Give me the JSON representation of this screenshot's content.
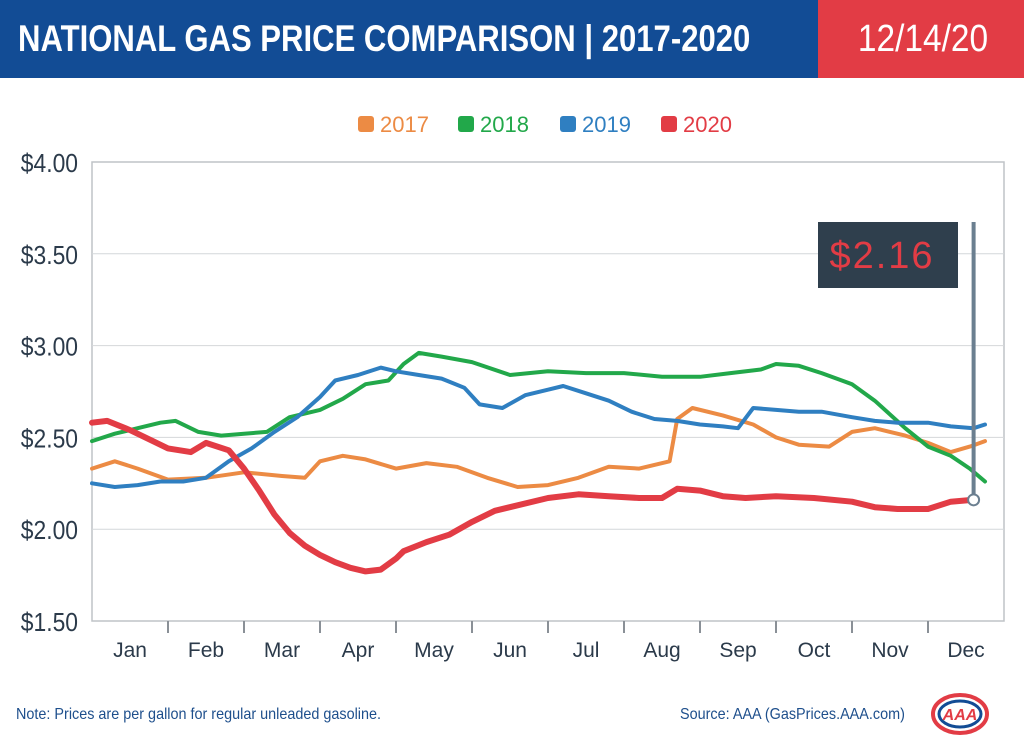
{
  "header": {
    "title": "NATIONAL GAS PRICE COMPARISON | 2017-2020",
    "date": "12/14/20"
  },
  "chart_data": {
    "type": "line",
    "ylim": [
      1.5,
      4.0
    ],
    "yticks": [
      "$4.00",
      "$3.50",
      "$3.00",
      "$2.50",
      "$2.00",
      "$1.50"
    ],
    "ytick_values": [
      4.0,
      3.5,
      3.0,
      2.5,
      2.0,
      1.5
    ],
    "months": [
      "Jan",
      "Feb",
      "Mar",
      "Apr",
      "May",
      "Jun",
      "Jul",
      "Aug",
      "Sep",
      "Oct",
      "Nov",
      "Dec"
    ],
    "grid": true,
    "legend_position": "top-center",
    "callout": {
      "label": "$2.16",
      "series": "2020",
      "x": 11.6,
      "y": 2.16
    },
    "series": [
      {
        "name": "2017",
        "color": "#ec8b44",
        "x": [
          0,
          0.3,
          0.6,
          1,
          1.5,
          2,
          2.5,
          2.8,
          3,
          3.3,
          3.6,
          4,
          4.4,
          4.8,
          5.2,
          5.6,
          6,
          6.4,
          6.8,
          7.2,
          7.6,
          7.7,
          7.9,
          8.3,
          8.7,
          9,
          9.3,
          9.7,
          10,
          10.3,
          10.7,
          11,
          11.3,
          11.55,
          11.75
        ],
        "y": [
          2.33,
          2.37,
          2.33,
          2.27,
          2.28,
          2.31,
          2.29,
          2.28,
          2.37,
          2.4,
          2.38,
          2.33,
          2.36,
          2.34,
          2.28,
          2.23,
          2.24,
          2.28,
          2.34,
          2.33,
          2.37,
          2.6,
          2.66,
          2.62,
          2.57,
          2.5,
          2.46,
          2.45,
          2.53,
          2.55,
          2.51,
          2.47,
          2.42,
          2.45,
          2.48
        ]
      },
      {
        "name": "2018",
        "color": "#22a84a",
        "x": [
          0,
          0.3,
          0.6,
          0.9,
          1.1,
          1.4,
          1.7,
          2,
          2.3,
          2.6,
          3,
          3.3,
          3.6,
          3.9,
          4.1,
          4.3,
          4.6,
          5,
          5.5,
          6,
          6.5,
          7,
          7.5,
          8,
          8.4,
          8.8,
          9,
          9.3,
          9.6,
          10,
          10.3,
          10.7,
          11,
          11.3,
          11.55,
          11.75
        ],
        "y": [
          2.48,
          2.52,
          2.55,
          2.58,
          2.59,
          2.53,
          2.51,
          2.52,
          2.53,
          2.61,
          2.65,
          2.71,
          2.79,
          2.81,
          2.9,
          2.96,
          2.94,
          2.91,
          2.84,
          2.86,
          2.85,
          2.85,
          2.83,
          2.83,
          2.85,
          2.87,
          2.9,
          2.89,
          2.85,
          2.79,
          2.7,
          2.55,
          2.45,
          2.4,
          2.33,
          2.26
        ]
      },
      {
        "name": "2019",
        "color": "#2f7fc1",
        "x": [
          0,
          0.3,
          0.6,
          0.9,
          1.2,
          1.5,
          1.8,
          2.1,
          2.4,
          2.7,
          3,
          3.2,
          3.5,
          3.8,
          4,
          4.3,
          4.6,
          4.9,
          5.1,
          5.4,
          5.7,
          6,
          6.2,
          6.5,
          6.8,
          7.1,
          7.4,
          7.7,
          8,
          8.3,
          8.5,
          8.7,
          9,
          9.3,
          9.6,
          10,
          10.3,
          10.6,
          11,
          11.3,
          11.6,
          11.75
        ],
        "y": [
          2.25,
          2.23,
          2.24,
          2.26,
          2.26,
          2.28,
          2.37,
          2.44,
          2.53,
          2.61,
          2.72,
          2.81,
          2.84,
          2.88,
          2.86,
          2.84,
          2.82,
          2.77,
          2.68,
          2.66,
          2.73,
          2.76,
          2.78,
          2.74,
          2.7,
          2.64,
          2.6,
          2.59,
          2.57,
          2.56,
          2.55,
          2.66,
          2.65,
          2.64,
          2.64,
          2.61,
          2.59,
          2.58,
          2.58,
          2.56,
          2.55,
          2.57
        ]
      },
      {
        "name": "2020",
        "color": "#e23c45",
        "x": [
          0,
          0.2,
          0.5,
          0.8,
          1,
          1.3,
          1.5,
          1.8,
          2,
          2.2,
          2.4,
          2.6,
          2.8,
          3,
          3.2,
          3.4,
          3.6,
          3.8,
          4,
          4.1,
          4.4,
          4.7,
          5,
          5.3,
          5.6,
          6,
          6.4,
          6.8,
          7.2,
          7.5,
          7.7,
          8,
          8.3,
          8.6,
          9,
          9.5,
          10,
          10.3,
          10.6,
          11,
          11.3,
          11.6
        ],
        "y": [
          2.58,
          2.59,
          2.54,
          2.48,
          2.44,
          2.42,
          2.47,
          2.43,
          2.33,
          2.21,
          2.08,
          1.98,
          1.91,
          1.86,
          1.82,
          1.79,
          1.77,
          1.78,
          1.84,
          1.88,
          1.93,
          1.97,
          2.04,
          2.1,
          2.13,
          2.17,
          2.19,
          2.18,
          2.17,
          2.17,
          2.22,
          2.21,
          2.18,
          2.17,
          2.18,
          2.17,
          2.15,
          2.12,
          2.11,
          2.11,
          2.15,
          2.16
        ]
      }
    ]
  },
  "footer": {
    "note": "Note: Prices are per gallon for regular unleaded gasoline.",
    "source": "Source: AAA (GasPrices.AAA.com)",
    "logo_text": "AAA"
  }
}
